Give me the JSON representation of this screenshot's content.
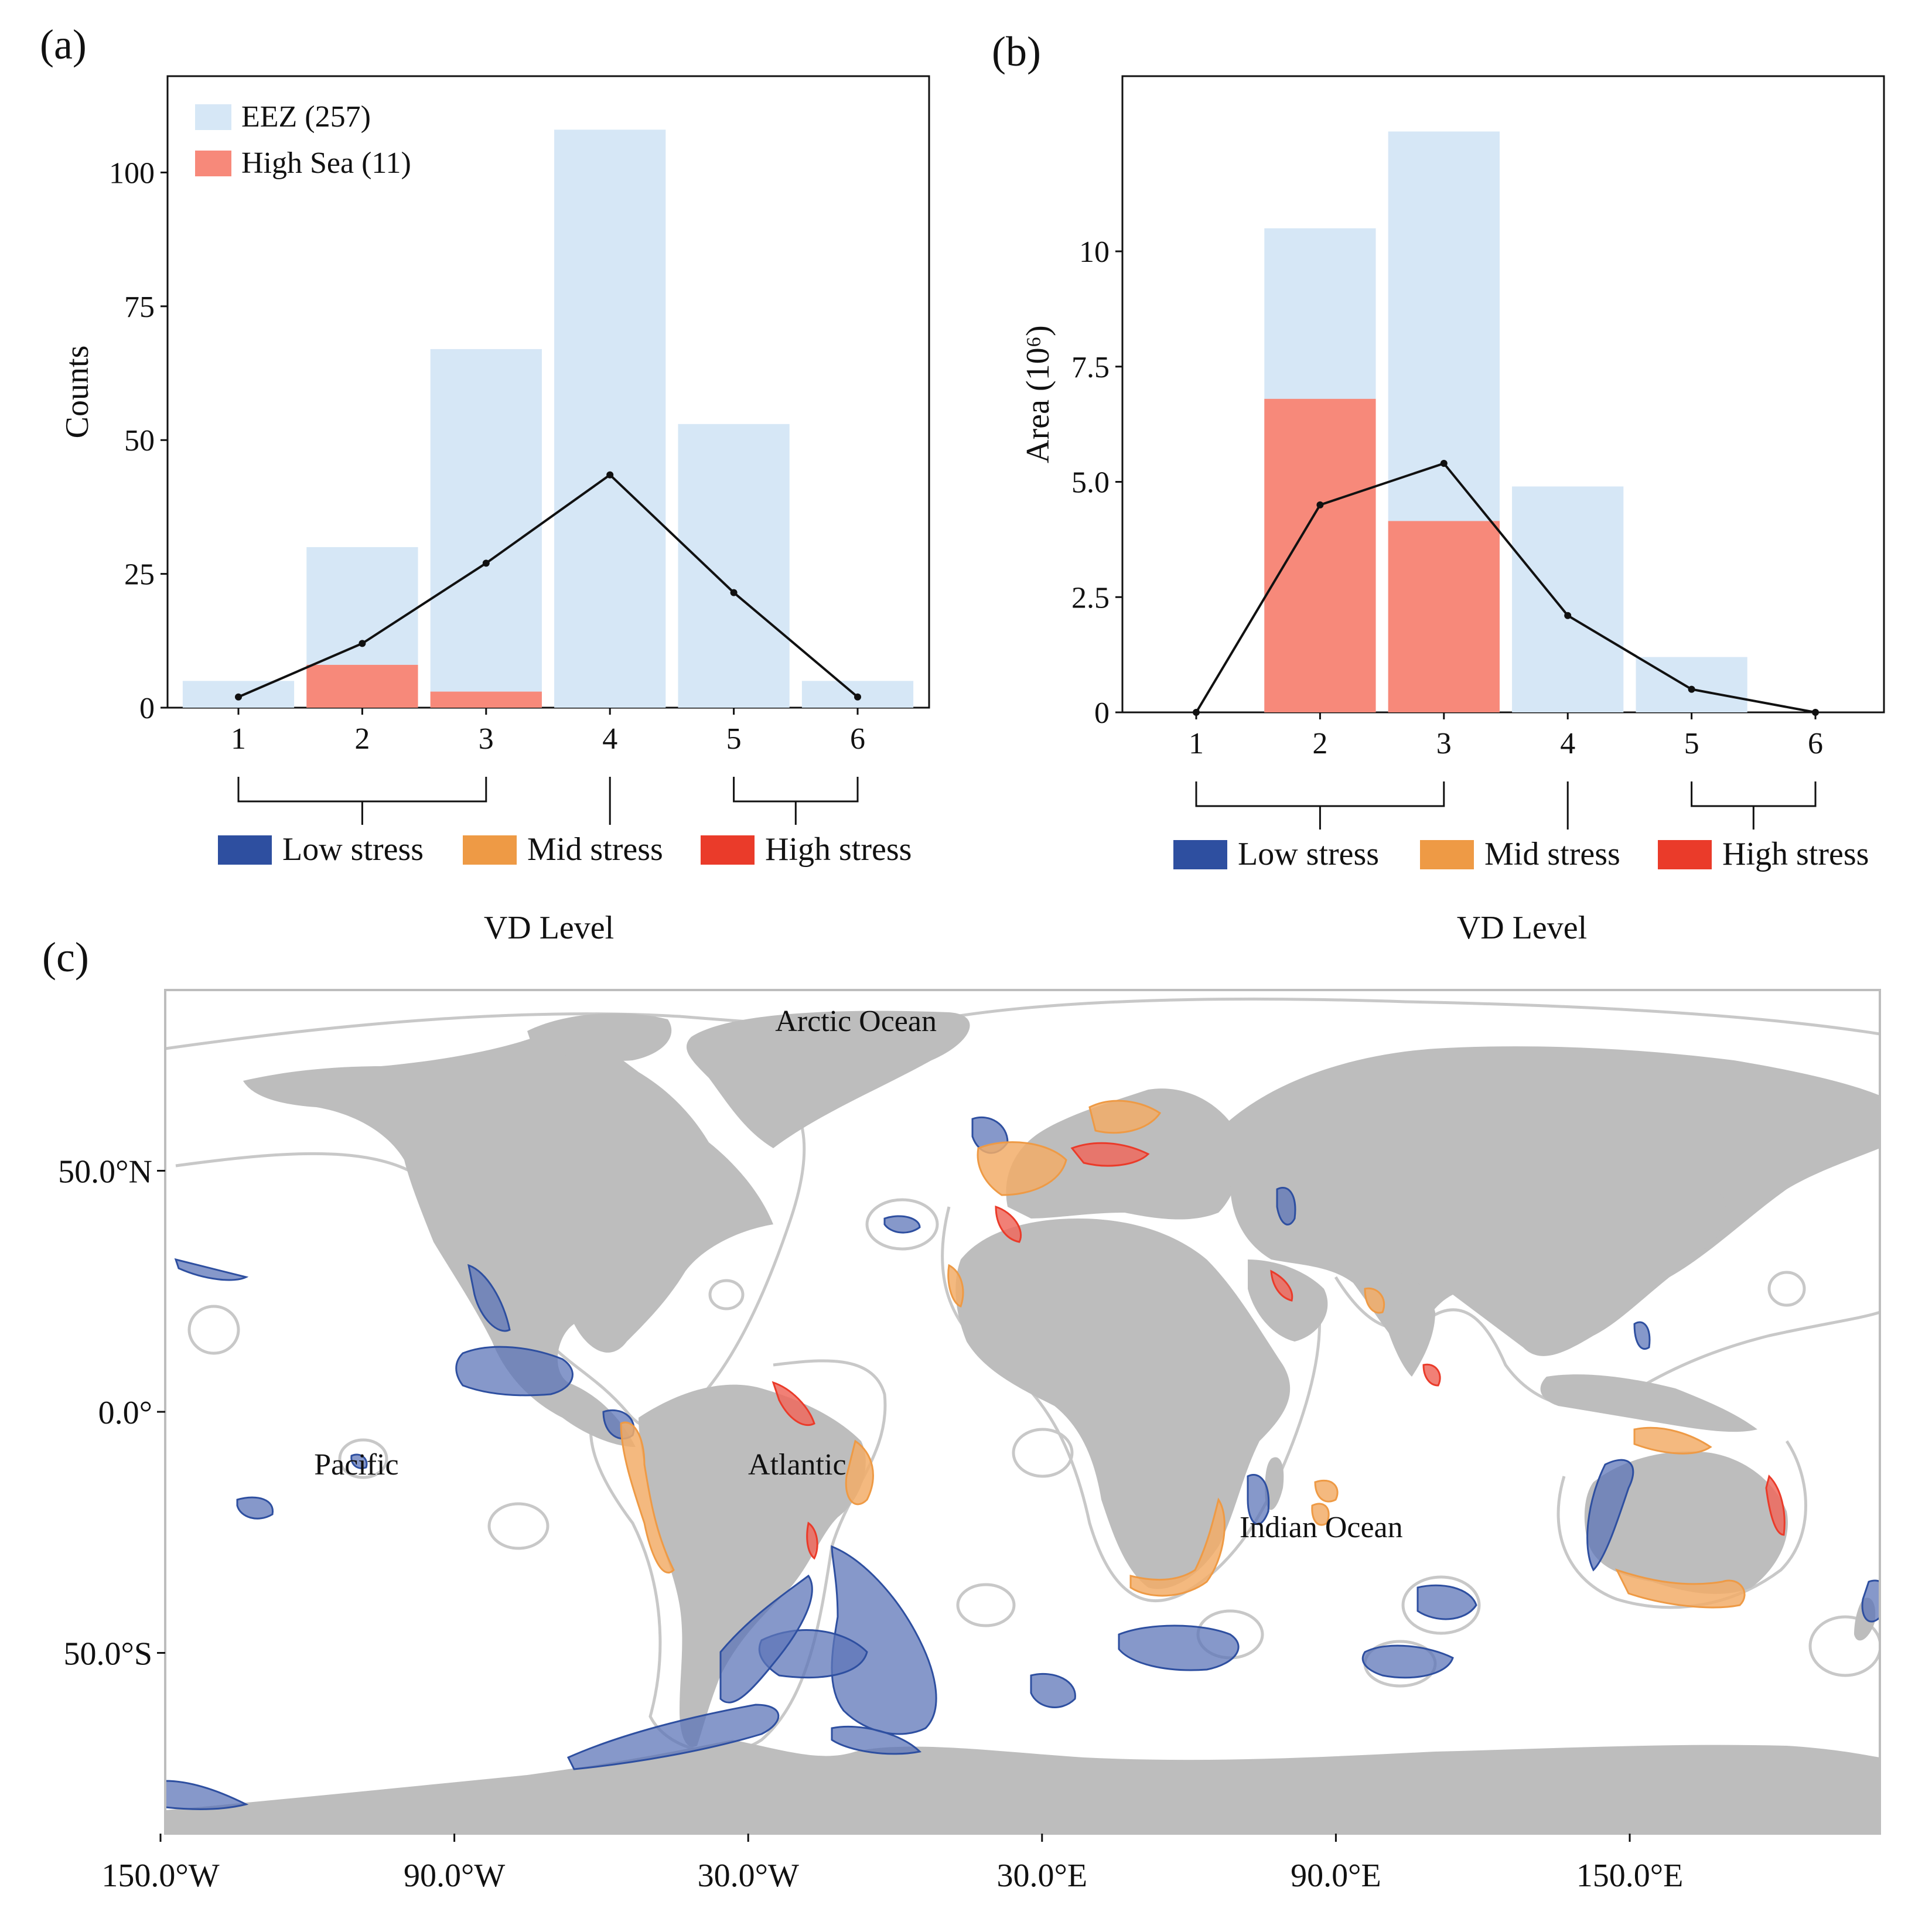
{
  "panel_labels": {
    "a": "(a)",
    "b": "(b)",
    "c": "(c)"
  },
  "colors": {
    "eez": "#d6e7f6",
    "high_sea": "#f7897a",
    "line": "#111111",
    "low_stress": "#2e4fa0",
    "mid_stress": "#ee9a45",
    "high_stress": "#ea3b2a",
    "land": "#bdbdbd",
    "eez_outline": "#c8c8c8",
    "region_low_fill": "#5d76b8",
    "region_mid_fill": "#f2ad68",
    "region_high_fill": "#ee6a5e"
  },
  "stress_legend": [
    {
      "label": "Low stress",
      "color_key": "low_stress"
    },
    {
      "label": "Mid stress",
      "color_key": "mid_stress"
    },
    {
      "label": "High stress",
      "color_key": "high_stress"
    }
  ],
  "chart_data": [
    {
      "id": "a",
      "type": "bar",
      "title": "",
      "xlabel": "VD Level",
      "ylabel": "Counts",
      "categories": [
        "1",
        "2",
        "3",
        "4",
        "5",
        "6"
      ],
      "ylim": [
        0,
        118
      ],
      "yticks": [
        0,
        25,
        50,
        75,
        100
      ],
      "ytick_labels": [
        "0",
        "25",
        "50",
        "75",
        "100"
      ],
      "legend_position": "top-left",
      "series": [
        {
          "name": "EEZ (257)",
          "kind": "bar",
          "color_key": "eez",
          "values": [
            5,
            30,
            67,
            108,
            53,
            5
          ]
        },
        {
          "name": "High Sea (11)",
          "kind": "bar",
          "color_key": "high_sea",
          "values": [
            0,
            8,
            3,
            0,
            0,
            0
          ]
        },
        {
          "kind": "line",
          "color_key": "line",
          "values": [
            2,
            12,
            27,
            43.5,
            21.5,
            2
          ]
        }
      ],
      "stress_groups": [
        {
          "label": "Low stress",
          "levels": [
            1,
            3
          ]
        },
        {
          "label": "Mid stress",
          "levels": [
            4,
            4
          ]
        },
        {
          "label": "High stress",
          "levels": [
            5,
            6
          ]
        }
      ]
    },
    {
      "id": "b",
      "type": "bar",
      "title": "",
      "xlabel": "VD Level",
      "ylabel": "Area (10⁶)",
      "categories": [
        "1",
        "2",
        "3",
        "4",
        "5",
        "6"
      ],
      "ylim": [
        0,
        13.8
      ],
      "yticks": [
        0,
        2.5,
        5,
        7.5,
        10
      ],
      "ytick_labels": [
        "0",
        "2.5",
        "5.0",
        "7.5",
        "10"
      ],
      "series": [
        {
          "name": "EEZ",
          "kind": "bar",
          "color_key": "eez",
          "values": [
            0,
            10.5,
            12.6,
            4.9,
            1.2,
            0
          ]
        },
        {
          "name": "High Sea",
          "kind": "bar",
          "color_key": "high_sea",
          "values": [
            0,
            6.8,
            4.15,
            0,
            0,
            0
          ]
        },
        {
          "kind": "line",
          "color_key": "line",
          "values": [
            0,
            4.5,
            5.4,
            2.1,
            0.5,
            0
          ]
        }
      ],
      "stress_groups": [
        {
          "label": "Low stress",
          "levels": [
            1,
            3
          ]
        },
        {
          "label": "Mid stress",
          "levels": [
            4,
            4
          ]
        },
        {
          "label": "High stress",
          "levels": [
            5,
            6
          ]
        }
      ]
    },
    {
      "id": "c",
      "type": "map",
      "title": "",
      "lon_range": [
        -180,
        180
      ],
      "lat_range": [
        -90,
        90
      ],
      "xticks": [
        -150,
        -90,
        -30,
        30,
        90,
        150
      ],
      "xtick_labels": [
        "150.0°W",
        "90.0°W",
        "30.0°W",
        "30.0°E",
        "90.0°E",
        "150.0°E"
      ],
      "yticks": [
        50,
        0,
        -50
      ],
      "ytick_labels": [
        "50.0°N",
        "0.0°",
        "50.0°S"
      ],
      "ocean_labels": [
        {
          "text": "Arctic Ocean",
          "lon": -8,
          "lat": 79
        },
        {
          "text": "Pacific",
          "lon": -110,
          "lat": -13
        },
        {
          "text": "Atlantic",
          "lon": -20,
          "lat": -13
        },
        {
          "text": "Indian Ocean",
          "lon": 87,
          "lat": -26
        }
      ]
    }
  ]
}
